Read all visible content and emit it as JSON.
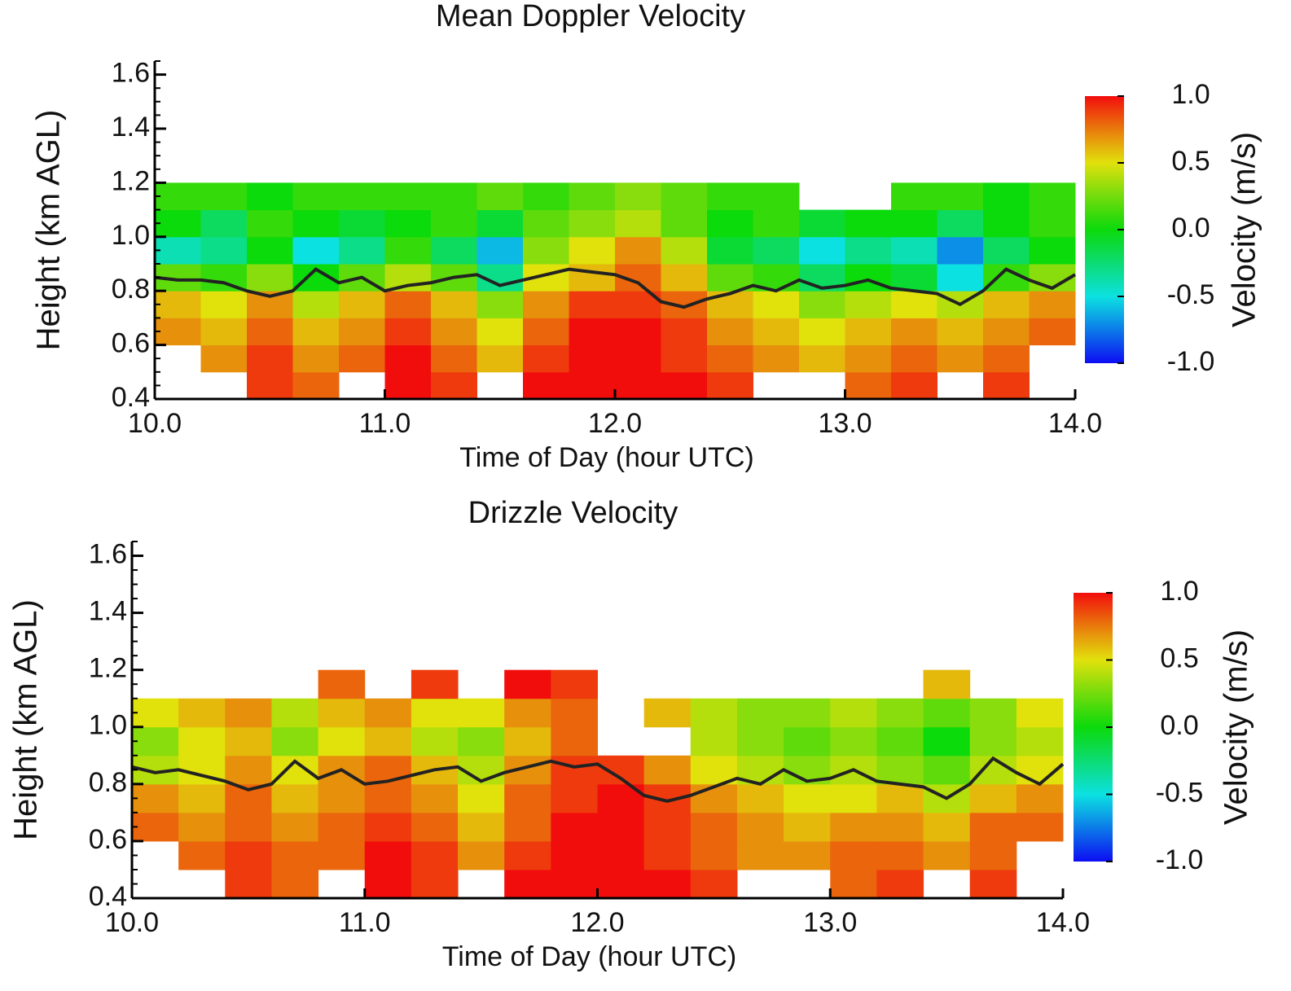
{
  "chart_data": [
    {
      "type": "heatmap",
      "title": "Mean Doppler Velocity",
      "xlabel": "Time of Day (hour UTC)",
      "ylabel": "Height (km AGL)",
      "xlim": [
        10,
        14
      ],
      "ylim": [
        0.4,
        1.65
      ],
      "xticks": [
        {
          "value": 10,
          "label": "10.0"
        },
        {
          "value": 11,
          "label": "11.0"
        },
        {
          "value": 12,
          "label": "12.0"
        },
        {
          "value": 13,
          "label": "13.0"
        },
        {
          "value": 14,
          "label": "14.0"
        }
      ],
      "yticks": [
        0.4,
        0.6,
        0.8,
        {
          "value": 1,
          "label": "1.0"
        },
        1.2,
        1.4,
        1.6
      ],
      "colormap": "rainbow",
      "colorbar_label": "Velocity (m/s)",
      "clim": [
        -1,
        1
      ],
      "cticks": [
        {
          "value": 1,
          "label": "1.0"
        },
        0.5,
        {
          "value": 0,
          "label": "0.0"
        },
        -0.5,
        {
          "value": -1,
          "label": "-1.0"
        }
      ],
      "x": [
        10.1,
        10.3,
        10.5,
        10.7,
        10.9,
        11.1,
        11.3,
        11.5,
        11.7,
        11.9,
        12.1,
        12.3,
        12.5,
        12.7,
        12.9,
        13.1,
        13.3,
        13.5,
        13.7,
        13.9
      ],
      "y": [
        0.45,
        0.55,
        0.65,
        0.75,
        0.85,
        0.95,
        1.05,
        1.15
      ],
      "z": [
        [
          null,
          null,
          0.9,
          0.8,
          null,
          1.0,
          0.9,
          null,
          1.0,
          1.0,
          1.0,
          1.0,
          0.9,
          null,
          null,
          0.8,
          0.9,
          null,
          0.9,
          null
        ],
        [
          null,
          0.7,
          0.9,
          0.7,
          0.8,
          1.0,
          0.8,
          0.6,
          0.9,
          1.0,
          1.0,
          0.9,
          0.8,
          0.7,
          0.6,
          0.7,
          0.8,
          0.7,
          0.8,
          null
        ],
        [
          0.7,
          0.6,
          0.8,
          0.6,
          0.7,
          0.9,
          0.7,
          0.5,
          0.8,
          1.0,
          1.0,
          0.9,
          0.7,
          0.6,
          0.5,
          0.6,
          0.7,
          0.6,
          0.7,
          0.8
        ],
        [
          0.6,
          0.5,
          0.7,
          0.4,
          0.6,
          0.8,
          0.6,
          0.3,
          0.7,
          0.9,
          0.9,
          0.8,
          0.6,
          0.5,
          0.3,
          0.4,
          0.5,
          0.4,
          0.6,
          0.7
        ],
        [
          0.2,
          0.1,
          0.3,
          0.0,
          0.2,
          0.4,
          0.2,
          -0.3,
          0.5,
          0.6,
          0.8,
          0.6,
          0.2,
          0.1,
          -0.2,
          0.0,
          -0.1,
          -0.5,
          0.1,
          0.3
        ],
        [
          -0.4,
          -0.3,
          0.0,
          -0.5,
          -0.3,
          0.1,
          -0.2,
          -0.6,
          0.3,
          0.5,
          0.7,
          0.4,
          -0.1,
          -0.2,
          -0.5,
          -0.3,
          -0.4,
          -0.7,
          -0.2,
          0.0
        ],
        [
          0.0,
          -0.2,
          0.1,
          0.0,
          -0.1,
          0.0,
          0.1,
          -0.1,
          0.2,
          0.3,
          0.4,
          0.2,
          0.0,
          0.1,
          -0.1,
          0.0,
          0.0,
          -0.2,
          0.0,
          0.1
        ],
        [
          0.1,
          0.1,
          0.0,
          0.1,
          0.1,
          0.1,
          0.1,
          0.2,
          0.1,
          0.2,
          0.3,
          0.2,
          0.1,
          0.1,
          null,
          null,
          0.1,
          0.1,
          0.0,
          0.1
        ]
      ],
      "line_color": "#222222",
      "line_x": [
        10.0,
        10.1,
        10.2,
        10.3,
        10.4,
        10.5,
        10.6,
        10.7,
        10.8,
        10.9,
        11.0,
        11.1,
        11.2,
        11.3,
        11.4,
        11.5,
        11.6,
        11.7,
        11.8,
        11.9,
        12.0,
        12.1,
        12.2,
        12.3,
        12.4,
        12.5,
        12.6,
        12.7,
        12.8,
        12.9,
        13.0,
        13.1,
        13.2,
        13.3,
        13.4,
        13.5,
        13.6,
        13.7,
        13.8,
        13.9,
        14.0
      ],
      "line_values": [
        0.85,
        0.84,
        0.84,
        0.83,
        0.8,
        0.78,
        0.8,
        0.88,
        0.83,
        0.85,
        0.8,
        0.82,
        0.83,
        0.85,
        0.86,
        0.82,
        0.84,
        0.86,
        0.88,
        0.87,
        0.86,
        0.83,
        0.76,
        0.74,
        0.77,
        0.79,
        0.82,
        0.8,
        0.84,
        0.81,
        0.82,
        0.84,
        0.81,
        0.8,
        0.79,
        0.75,
        0.8,
        0.88,
        0.84,
        0.81,
        0.86
      ]
    },
    {
      "type": "heatmap",
      "title": "Drizzle Velocity",
      "xlabel": "Time of Day (hour UTC)",
      "ylabel": "Height (km AGL)",
      "xlim": [
        10,
        14
      ],
      "ylim": [
        0.4,
        1.65
      ],
      "xticks": [
        {
          "value": 10,
          "label": "10.0"
        },
        {
          "value": 11,
          "label": "11.0"
        },
        {
          "value": 12,
          "label": "12.0"
        },
        {
          "value": 13,
          "label": "13.0"
        },
        {
          "value": 14,
          "label": "14.0"
        }
      ],
      "yticks": [
        0.4,
        0.6,
        0.8,
        {
          "value": 1,
          "label": "1.0"
        },
        1.2,
        1.4,
        1.6
      ],
      "colormap": "rainbow",
      "colorbar_label": "Velocity (m/s)",
      "clim": [
        -1,
        1
      ],
      "cticks": [
        {
          "value": 1,
          "label": "1.0"
        },
        0.5,
        {
          "value": 0,
          "label": "0.0"
        },
        -0.5,
        {
          "value": -1,
          "label": "-1.0"
        }
      ],
      "x": [
        10.1,
        10.3,
        10.5,
        10.7,
        10.9,
        11.1,
        11.3,
        11.5,
        11.7,
        11.9,
        12.1,
        12.3,
        12.5,
        12.7,
        12.9,
        13.1,
        13.3,
        13.5,
        13.7,
        13.9
      ],
      "y": [
        0.45,
        0.55,
        0.65,
        0.75,
        0.85,
        0.95,
        1.05,
        1.15
      ],
      "z": [
        [
          null,
          null,
          0.9,
          0.8,
          null,
          1.0,
          0.9,
          null,
          1.0,
          1.0,
          1.0,
          1.0,
          0.9,
          null,
          null,
          0.8,
          0.9,
          null,
          0.9,
          null
        ],
        [
          null,
          0.8,
          0.9,
          0.8,
          0.8,
          1.0,
          0.9,
          0.7,
          0.9,
          1.0,
          1.0,
          0.9,
          0.8,
          0.7,
          0.7,
          0.8,
          0.8,
          0.7,
          0.8,
          null
        ],
        [
          0.8,
          0.7,
          0.8,
          0.7,
          0.8,
          0.9,
          0.8,
          0.6,
          0.8,
          1.0,
          1.0,
          0.9,
          0.8,
          0.7,
          0.6,
          0.7,
          0.7,
          0.6,
          0.8,
          0.8
        ],
        [
          0.7,
          0.6,
          0.8,
          0.6,
          0.7,
          0.8,
          0.7,
          0.5,
          0.8,
          0.9,
          1.0,
          0.9,
          0.7,
          0.6,
          0.5,
          0.5,
          0.6,
          0.4,
          0.6,
          0.7
        ],
        [
          0.4,
          0.5,
          0.7,
          0.5,
          0.7,
          0.8,
          0.6,
          0.4,
          0.7,
          0.9,
          0.9,
          0.7,
          0.5,
          0.4,
          0.3,
          0.4,
          0.3,
          0.2,
          0.4,
          0.5
        ],
        [
          0.3,
          0.5,
          0.6,
          0.3,
          0.5,
          0.6,
          0.4,
          0.3,
          0.6,
          0.8,
          null,
          null,
          0.4,
          0.3,
          0.2,
          0.3,
          0.2,
          0.0,
          0.3,
          0.4
        ],
        [
          0.5,
          0.6,
          0.7,
          0.4,
          0.6,
          0.7,
          0.5,
          0.5,
          0.7,
          0.8,
          null,
          0.6,
          0.4,
          0.3,
          0.3,
          0.4,
          0.3,
          0.2,
          0.3,
          0.5
        ],
        [
          null,
          null,
          null,
          null,
          0.8,
          null,
          0.9,
          null,
          1.0,
          0.9,
          null,
          null,
          null,
          null,
          null,
          null,
          null,
          0.6,
          null,
          null
        ]
      ],
      "line_color": "#222222",
      "line_x": [
        10.0,
        10.1,
        10.2,
        10.3,
        10.4,
        10.5,
        10.6,
        10.7,
        10.8,
        10.9,
        11.0,
        11.1,
        11.2,
        11.3,
        11.4,
        11.5,
        11.6,
        11.7,
        11.8,
        11.9,
        12.0,
        12.1,
        12.2,
        12.3,
        12.4,
        12.5,
        12.6,
        12.7,
        12.8,
        12.9,
        13.0,
        13.1,
        13.2,
        13.3,
        13.4,
        13.5,
        13.6,
        13.7,
        13.8,
        13.9,
        14.0
      ],
      "line_values": [
        0.86,
        0.84,
        0.85,
        0.83,
        0.81,
        0.78,
        0.8,
        0.88,
        0.82,
        0.85,
        0.8,
        0.81,
        0.83,
        0.85,
        0.86,
        0.81,
        0.84,
        0.86,
        0.88,
        0.86,
        0.87,
        0.82,
        0.76,
        0.74,
        0.76,
        0.79,
        0.82,
        0.8,
        0.85,
        0.81,
        0.82,
        0.85,
        0.81,
        0.8,
        0.79,
        0.75,
        0.8,
        0.89,
        0.84,
        0.8,
        0.87
      ]
    }
  ]
}
